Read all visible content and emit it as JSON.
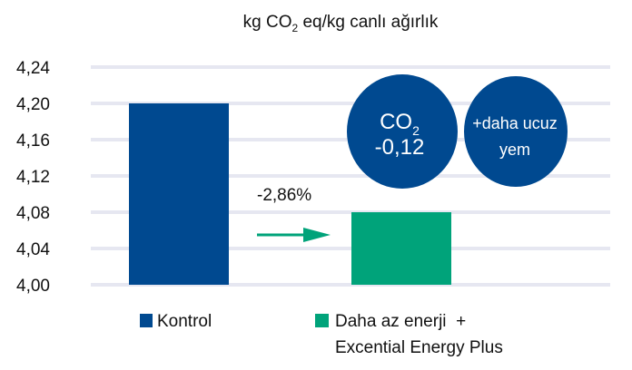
{
  "chart_data": {
    "type": "bar",
    "title": {
      "pre": "kg CO",
      "sub": "2",
      "post": " eq/kg canlı ağırlık"
    },
    "xlabel": "",
    "ylabel": "",
    "ylim": [
      4.0,
      4.24
    ],
    "yticks": [
      4.0,
      4.04,
      4.08,
      4.12,
      4.16,
      4.2,
      4.24
    ],
    "ytick_labels": [
      "4,00",
      "4,04",
      "4,08",
      "4,12",
      "4,16",
      "4,20",
      "4,24"
    ],
    "grid": true,
    "categories": [
      "Kontrol",
      "Daha az enerji + Excential Energy Plus"
    ],
    "values": [
      4.2,
      4.08
    ],
    "colors": [
      "#004990",
      "#00a37a"
    ],
    "legend": {
      "placement": "bottom",
      "entries": [
        {
          "lines": [
            "Kontrol"
          ]
        },
        {
          "lines": [
            "Daha az enerji  +",
            "Excential Energy Plus"
          ]
        }
      ]
    },
    "annotations": {
      "change_label": "-2,86%",
      "arrow_color": "#00a37a",
      "circle_color": "#004990",
      "circle1": {
        "pre": "CO",
        "sub": "2",
        "value": "-0,12"
      },
      "circle2": {
        "line1": "+daha ucuz",
        "line2": "yem"
      }
    },
    "gridline_color": "#e6e7f1"
  }
}
